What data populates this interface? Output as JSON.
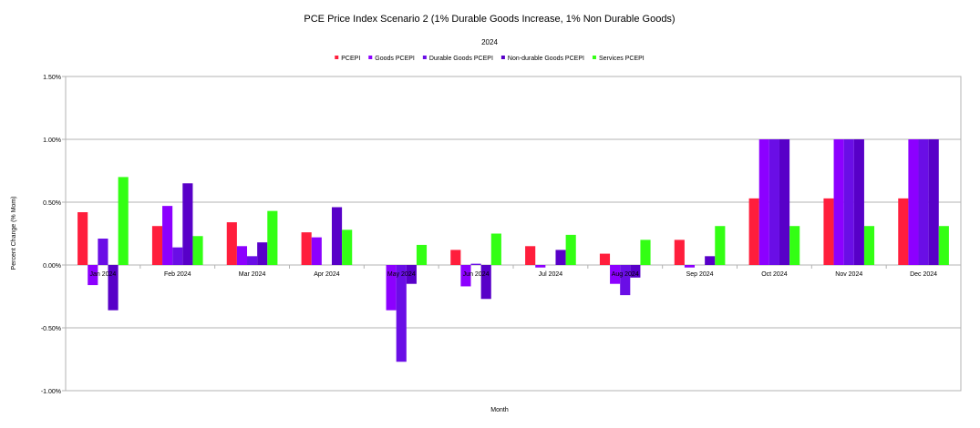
{
  "chart_data": {
    "type": "bar",
    "title": "PCE Price Index Scenario 2 (1% Durable Goods Increase, 1% Non Durable Goods)",
    "subtitle": "2024",
    "xlabel": "Month",
    "ylabel": "Percent Change (% Mom)",
    "ylim": [
      -1.0,
      1.5
    ],
    "yticks": [
      -1.0,
      -0.5,
      0.0,
      0.5,
      1.0,
      1.5
    ],
    "ytick_labels": [
      "-1.00%",
      "-0.50%",
      "0.00%",
      "0.50%",
      "1.00%",
      "1.50%"
    ],
    "grid": true,
    "legend_position": "top-center",
    "categories": [
      "Jan 2024",
      "Feb 2024",
      "Mar 2024",
      "Apr 2024",
      "May 2024",
      "Jun 2024",
      "Jul 2024",
      "Aug 2024",
      "Sep 2024",
      "Oct 2024",
      "Nov 2024",
      "Dec 2024"
    ],
    "series": [
      {
        "name": "PCEPI",
        "color": "#ff1e3c",
        "values": [
          0.42,
          0.31,
          0.34,
          0.26,
          0.0,
          0.12,
          0.15,
          0.09,
          0.2,
          0.53,
          0.53,
          0.53
        ]
      },
      {
        "name": "Goods PCEPI",
        "color": "#8c00ff",
        "values": [
          -0.16,
          0.47,
          0.15,
          0.22,
          -0.36,
          -0.17,
          -0.02,
          -0.15,
          -0.02,
          1.0,
          1.0,
          1.0
        ]
      },
      {
        "name": "Durable Goods PCEPI",
        "color": "#6a0ee6",
        "values": [
          0.21,
          0.14,
          0.07,
          0.0,
          -0.77,
          0.01,
          0.0,
          -0.24,
          0.0,
          1.0,
          1.0,
          1.0
        ]
      },
      {
        "name": "Non-durable Goods PCEPI",
        "color": "#5800c8",
        "values": [
          -0.36,
          0.65,
          0.18,
          0.46,
          -0.15,
          -0.27,
          0.12,
          -0.1,
          0.07,
          1.0,
          1.0,
          1.0
        ]
      },
      {
        "name": "Services PCEPI",
        "color": "#33ff14",
        "values": [
          0.7,
          0.23,
          0.43,
          0.28,
          0.16,
          0.25,
          0.24,
          0.2,
          0.31,
          0.31,
          0.31,
          0.31
        ]
      }
    ]
  }
}
